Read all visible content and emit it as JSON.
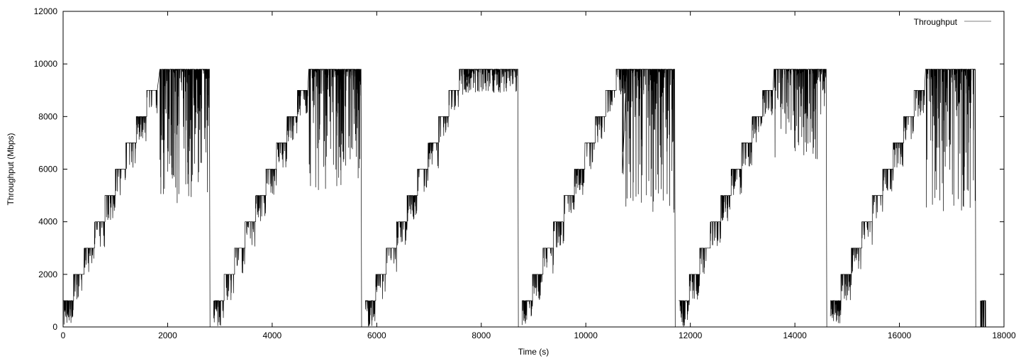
{
  "chart_data": {
    "type": "line",
    "title": "",
    "xlabel": "Time (s)",
    "ylabel": "Throughput (Mbps)",
    "xlim": [
      0,
      18000
    ],
    "ylim": [
      0,
      12000
    ],
    "x_ticks": [
      0,
      2000,
      4000,
      6000,
      8000,
      10000,
      12000,
      14000,
      16000,
      18000
    ],
    "y_ticks": [
      0,
      2000,
      4000,
      6000,
      8000,
      10000,
      12000
    ],
    "grid": false,
    "legend_position": "top-right",
    "series": [
      {
        "name": "Throughput",
        "color": "#000000",
        "line_color_legend": "#808080",
        "pattern": "repeating sawtooth ramp: throughput steps up by ~1000 Mbps every ~200 s from ~1000 to ~9800 Mbps, stays at ~9800 Mbps with heavy dips for ~900 s, then drops to 0",
        "cycles": [
          {
            "start": 0,
            "plateau_start": 1850,
            "end": 2800,
            "plateau_value": 9800,
            "dip_min": 4600
          },
          {
            "start": 2880,
            "plateau_start": 4700,
            "end": 5700,
            "plateau_value": 9800,
            "dip_min": 5200
          },
          {
            "start": 5780,
            "plateau_start": 7700,
            "end": 8700,
            "plateau_value": 9800,
            "dip_min": 8900
          },
          {
            "start": 8780,
            "plateau_start": 10700,
            "end": 11700,
            "plateau_value": 9800,
            "dip_min": 4300
          },
          {
            "start": 11780,
            "plateau_start": 13600,
            "end": 14600,
            "plateau_value": 9800,
            "dip_min": 6200
          },
          {
            "start": 14680,
            "plateau_start": 16500,
            "end": 17450,
            "plateau_value": 9800,
            "dip_min": 4400
          }
        ],
        "step_size": 1000,
        "step_duration": 200,
        "tail": {
          "start": 17550,
          "end": 17650,
          "value": 1000
        }
      }
    ]
  }
}
